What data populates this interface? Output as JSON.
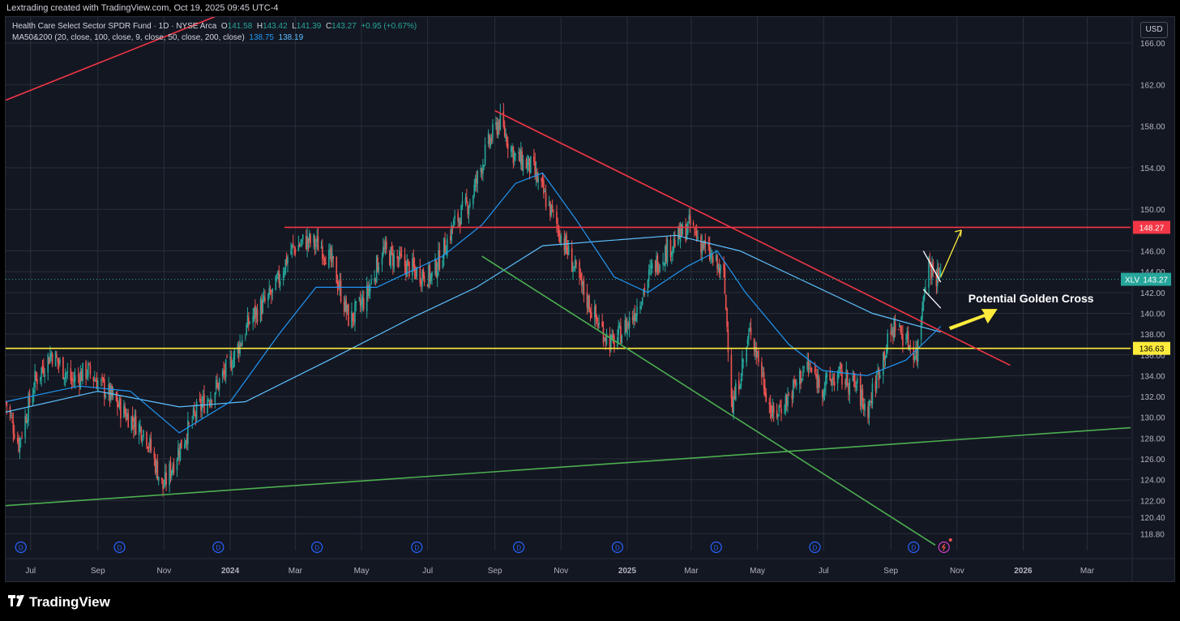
{
  "header": {
    "title": "Lextrading created with TradingView.com, Oct 19, 2025 09:45 UTC-4"
  },
  "legend": {
    "symbol_line": "Health Care Select Sector SPDR Fund · 1D · NYSE Arca",
    "o_label": "O",
    "o": "141.58",
    "h_label": "H",
    "h": "143.42",
    "l_label": "L",
    "l": "141.39",
    "c_label": "C",
    "c": "143.27",
    "change": "+0.95 (+0.67%)",
    "ma_line": "MA50&200 (20, close, 100, close, 9, close, 50, close, 200, close)",
    "ma50": "138.75",
    "ma200": "138.19"
  },
  "currency_button": "USD",
  "annotation": "Potential Golden Cross",
  "branding": {
    "logo_text": "TradingView"
  },
  "colors": {
    "background": "#131722",
    "grid": "#2a2e39",
    "up": "#26a69a",
    "down": "#ef5350",
    "ma50": "#2196f3",
    "ma200": "#5ec1ff",
    "resistance": "#f23645",
    "support": "#4caf50",
    "yellow": "#ffeb3b",
    "annotation_arrow": "#ffeb3b"
  },
  "chart_data": {
    "type": "candlestick",
    "symbol": "XLV",
    "timeframe": "1D",
    "exchange": "NYSE Arca",
    "x_range": [
      "2023-06-08",
      "2026-04-10"
    ],
    "y_range": [
      117.5,
      168.5
    ],
    "y_ticks": [
      "166.00",
      "162.00",
      "158.00",
      "154.00",
      "150.00",
      "146.00",
      "144.00",
      "142.00",
      "140.00",
      "138.00",
      "136.00",
      "134.00",
      "132.00",
      "130.00",
      "128.00",
      "126.00",
      "124.00",
      "122.00",
      "120.40",
      "118.80"
    ],
    "x_ticks": [
      {
        "label": "Jul",
        "date": "2023-07-01"
      },
      {
        "label": "Sep",
        "date": "2023-09-01"
      },
      {
        "label": "Nov",
        "date": "2023-11-01"
      },
      {
        "label": "2024",
        "date": "2024-01-01",
        "bold": true
      },
      {
        "label": "Mar",
        "date": "2024-03-01"
      },
      {
        "label": "May",
        "date": "2024-05-01"
      },
      {
        "label": "Jul",
        "date": "2024-07-01"
      },
      {
        "label": "Sep",
        "date": "2024-09-01"
      },
      {
        "label": "Nov",
        "date": "2024-11-01"
      },
      {
        "label": "2025",
        "date": "2025-01-01",
        "bold": true
      },
      {
        "label": "Mar",
        "date": "2025-03-01"
      },
      {
        "label": "May",
        "date": "2025-05-01"
      },
      {
        "label": "Jul",
        "date": "2025-07-01"
      },
      {
        "label": "Sep",
        "date": "2025-09-01"
      },
      {
        "label": "Nov",
        "date": "2025-11-01"
      },
      {
        "label": "2026",
        "date": "2026-01-01",
        "bold": true
      },
      {
        "label": "Mar",
        "date": "2026-03-01"
      }
    ],
    "price_path": [
      [
        "2023-06-08",
        131.5
      ],
      [
        "2023-06-20",
        127.5
      ],
      [
        "2023-07-05",
        133.5
      ],
      [
        "2023-07-20",
        136.2
      ],
      [
        "2023-08-08",
        133.5
      ],
      [
        "2023-08-22",
        134.5
      ],
      [
        "2023-09-05",
        133.0
      ],
      [
        "2023-09-25",
        130.5
      ],
      [
        "2023-10-15",
        128.5
      ],
      [
        "2023-10-31",
        123.2
      ],
      [
        "2023-11-15",
        127.0
      ],
      [
        "2023-12-01",
        130.5
      ],
      [
        "2023-12-20",
        133.0
      ],
      [
        "2024-01-05",
        136.0
      ],
      [
        "2024-01-20",
        139.5
      ],
      [
        "2024-02-10",
        142.0
      ],
      [
        "2024-02-25",
        146.0
      ],
      [
        "2024-03-10",
        147.0
      ],
      [
        "2024-03-25",
        146.5
      ],
      [
        "2024-04-05",
        144.5
      ],
      [
        "2024-04-20",
        139.2
      ],
      [
        "2024-05-05",
        141.5
      ],
      [
        "2024-05-20",
        146.0
      ],
      [
        "2024-06-05",
        145.0
      ],
      [
        "2024-06-20",
        144.0
      ],
      [
        "2024-07-05",
        143.5
      ],
      [
        "2024-07-25",
        148.5
      ],
      [
        "2024-08-10",
        151.0
      ],
      [
        "2024-08-25",
        156.0
      ],
      [
        "2024-09-05",
        158.5
      ],
      [
        "2024-09-20",
        155.0
      ],
      [
        "2024-10-05",
        154.0
      ],
      [
        "2024-10-20",
        150.5
      ],
      [
        "2024-11-05",
        146.5
      ],
      [
        "2024-11-20",
        142.5
      ],
      [
        "2024-12-05",
        139.0
      ],
      [
        "2024-12-18",
        137.0
      ],
      [
        "2025-01-05",
        139.5
      ],
      [
        "2025-01-25",
        144.5
      ],
      [
        "2025-02-10",
        146.5
      ],
      [
        "2025-02-28",
        148.5
      ],
      [
        "2025-03-15",
        146.0
      ],
      [
        "2025-03-31",
        143.5
      ],
      [
        "2025-04-08",
        131.0
      ],
      [
        "2025-04-25",
        138.5
      ],
      [
        "2025-05-15",
        130.0
      ],
      [
        "2025-05-30",
        132.0
      ],
      [
        "2025-06-15",
        135.0
      ],
      [
        "2025-06-30",
        133.0
      ],
      [
        "2025-07-15",
        134.0
      ],
      [
        "2025-07-31",
        133.0
      ],
      [
        "2025-08-10",
        130.5
      ],
      [
        "2025-08-25",
        136.0
      ],
      [
        "2025-09-05",
        139.0
      ],
      [
        "2025-09-15",
        137.5
      ],
      [
        "2025-09-25",
        136.0
      ],
      [
        "2025-10-01",
        142.0
      ],
      [
        "2025-10-05",
        145.0
      ],
      [
        "2025-10-10",
        144.0
      ],
      [
        "2025-10-17",
        143.27
      ]
    ],
    "ma50_path": [
      [
        "2023-06-08",
        131.5
      ],
      [
        "2023-08-15",
        133.0
      ],
      [
        "2023-10-01",
        132.5
      ],
      [
        "2023-11-15",
        128.5
      ],
      [
        "2024-01-01",
        131.5
      ],
      [
        "2024-02-15",
        138.0
      ],
      [
        "2024-03-20",
        142.5
      ],
      [
        "2024-05-15",
        142.5
      ],
      [
        "2024-07-15",
        145.5
      ],
      [
        "2024-08-20",
        148.5
      ],
      [
        "2024-09-20",
        152.5
      ],
      [
        "2024-10-15",
        153.5
      ],
      [
        "2024-11-15",
        149.0
      ],
      [
        "2024-12-20",
        143.5
      ],
      [
        "2025-01-20",
        142.0
      ],
      [
        "2025-02-25",
        144.5
      ],
      [
        "2025-03-25",
        146.0
      ],
      [
        "2025-04-20",
        142.0
      ],
      [
        "2025-05-30",
        137.0
      ],
      [
        "2025-06-30",
        134.5
      ],
      [
        "2025-08-10",
        134.0
      ],
      [
        "2025-09-15",
        135.5
      ],
      [
        "2025-10-17",
        138.75
      ]
    ],
    "ma200_path": [
      [
        "2023-06-08",
        130.5
      ],
      [
        "2023-09-01",
        132.5
      ],
      [
        "2023-11-15",
        131.0
      ],
      [
        "2024-01-15",
        131.5
      ],
      [
        "2024-04-01",
        135.5
      ],
      [
        "2024-06-15",
        139.5
      ],
      [
        "2024-08-15",
        142.5
      ],
      [
        "2024-10-15",
        146.5
      ],
      [
        "2024-12-15",
        147.0
      ],
      [
        "2025-02-15",
        147.5
      ],
      [
        "2025-04-15",
        146.0
      ],
      [
        "2025-06-15",
        143.0
      ],
      [
        "2025-08-15",
        140.0
      ],
      [
        "2025-10-17",
        138.19
      ]
    ],
    "horizontal_levels": [
      {
        "price": 148.27,
        "label": "148.27",
        "color": "#f23645",
        "from": "2024-02-20"
      },
      {
        "price": 136.63,
        "label": "136.63",
        "color": "#ffeb3b",
        "from": "2023-06-08"
      }
    ],
    "trendlines": [
      {
        "from": [
          "2023-06-08",
          160.5
        ],
        "to": [
          "2024-01-10",
          169.5
        ],
        "color": "#f23645"
      },
      {
        "from": [
          "2024-09-01",
          159.5
        ],
        "to": [
          "2025-12-20",
          135.0
        ],
        "color": "#f23645"
      },
      {
        "from": [
          "2024-08-20",
          145.5
        ],
        "to": [
          "2025-10-12",
          117.7
        ],
        "color": "#4caf50"
      },
      {
        "from": [
          "2023-06-08",
          121.5
        ],
        "to": [
          "2026-04-10",
          129.0
        ],
        "color": "#4caf50"
      }
    ],
    "flag": [
      {
        "from": [
          "2025-10-01",
          146.0
        ],
        "to": [
          "2025-10-17",
          143.0
        ]
      },
      {
        "from": [
          "2025-10-01",
          142.3
        ],
        "to": [
          "2025-10-17",
          140.5
        ]
      }
    ],
    "arrow_up": {
      "from": [
        "2025-10-17",
        143.5
      ],
      "to": [
        "2025-11-05",
        148.0
      ]
    },
    "dividend_markers": [
      "2023-06-22",
      "2023-09-21",
      "2023-12-21",
      "2024-03-21",
      "2024-06-21",
      "2024-09-23",
      "2024-12-23",
      "2025-03-24",
      "2025-06-23",
      "2025-09-22"
    ],
    "event_marker": "2025-10-20",
    "last_price": {
      "symbol": "XLV",
      "price": 143.27
    }
  }
}
